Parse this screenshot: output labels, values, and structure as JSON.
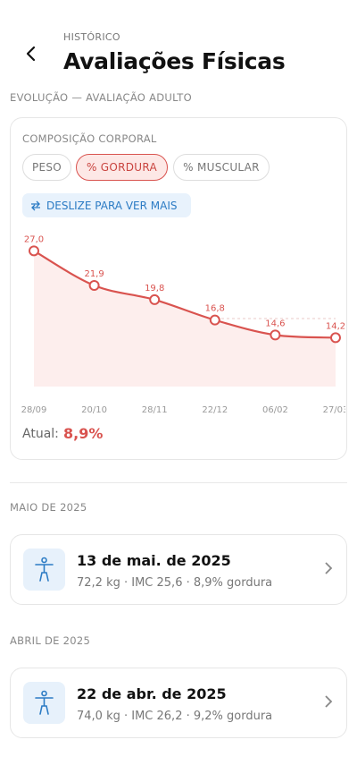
{
  "header": {
    "eyebrow": "HISTÓRICO",
    "title": "Avaliações Físicas"
  },
  "section_title": "EVOLUÇÃO — AVALIAÇÃO ADULTO",
  "composition_card": {
    "title": "COMPOSIÇÃO CORPORAL",
    "tabs": [
      "PESO",
      "% GORDURA",
      "% MUSCULAR"
    ],
    "hint": "DESLIZE PARA VER MAIS",
    "chart": {
      "type": "line",
      "color": "#d9534f",
      "categories": [
        "28/09",
        "20/10",
        "28/11",
        "22/12",
        "06/02",
        "27/03"
      ],
      "values": [
        27.0,
        21.9,
        19.8,
        16.8,
        14.6,
        14.2
      ],
      "value_labels": [
        "27,0",
        "21,9",
        "19,8",
        "16,8",
        "14,6",
        "14,2"
      ],
      "ylim": [
        7,
        31
      ]
    },
    "current_label": "Atual:",
    "current_value": "8,9%"
  },
  "groups": [
    {
      "title": "MAIO DE 2025",
      "items": [
        {
          "date": "13 de mai. de 2025",
          "details": "72,2 kg · IMC 25,6 · 8,9% gordura"
        }
      ]
    },
    {
      "title": "ABRIL DE 2025",
      "items": [
        {
          "date": "22 de abr. de 2025",
          "details": "74,0 kg · IMC 26,2 · 9,2% gordura"
        }
      ]
    }
  ]
}
